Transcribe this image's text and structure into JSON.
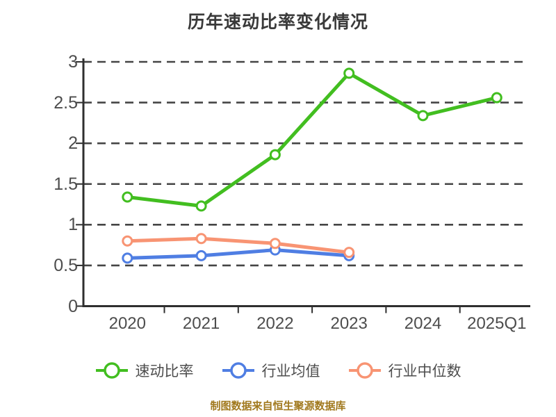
{
  "title": "历年速动比率变化情况",
  "source_note": "制图数据来自恒生聚源数据库",
  "colors": {
    "title_text": "#3a3a3a",
    "tick_text": "#4d4d4d",
    "legend_text": "#4d4d4d",
    "source_text": "#a1791e",
    "axis": "#2f2f2f",
    "grid": "#454545",
    "marker_fill": "#ffffff"
  },
  "chart_data": {
    "type": "line",
    "title": "历年速动比率变化情况",
    "categories": [
      "2020",
      "2021",
      "2022",
      "2023",
      "2024",
      "2025Q1"
    ],
    "series": [
      {
        "name": "速动比率",
        "color": "#42be20",
        "values": [
          1.34,
          1.23,
          1.86,
          2.86,
          2.34,
          2.56
        ]
      },
      {
        "name": "行业均值",
        "color": "#4f7ee3",
        "values": [
          0.59,
          0.62,
          0.69,
          0.62
        ]
      },
      {
        "name": "行业中位数",
        "color": "#f89473",
        "values": [
          0.8,
          0.83,
          0.77,
          0.66
        ]
      }
    ],
    "xlabel": "",
    "ylabel": "",
    "ylim": [
      0,
      3
    ],
    "yticks": [
      0,
      0.5,
      1,
      1.5,
      2,
      2.5,
      3
    ],
    "grid": "horizontal-dashed",
    "legend_position": "bottom",
    "marker": "open-circle"
  }
}
